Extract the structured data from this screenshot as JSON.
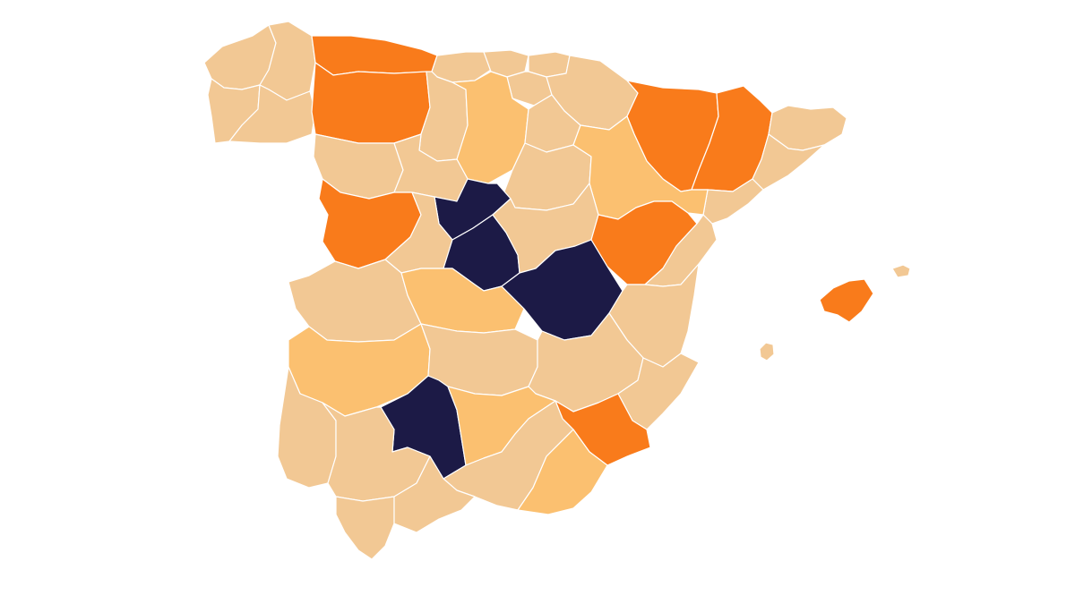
{
  "colors": {
    "background": "#ffffff",
    "level_0": "#f2c894",
    "level_1": "#fbc070",
    "level_2": "#f97b1b",
    "level_3": "#1c1a46",
    "border": "#ffffff"
  },
  "map": {
    "region": "Spain",
    "unit": "province",
    "legend": "none",
    "provinces": [
      {
        "id": "A Coruña",
        "level": 0
      },
      {
        "id": "Lugo",
        "level": 0
      },
      {
        "id": "Pontevedra",
        "level": 0
      },
      {
        "id": "Ourense",
        "level": 0
      },
      {
        "id": "Asturias",
        "level": 2
      },
      {
        "id": "Cantabria",
        "level": 0
      },
      {
        "id": "Bizkaia",
        "level": 0
      },
      {
        "id": "Gipuzkoa",
        "level": 0
      },
      {
        "id": "Álava",
        "level": 0
      },
      {
        "id": "Navarra",
        "level": 0
      },
      {
        "id": "León",
        "level": 2
      },
      {
        "id": "Palencia",
        "level": 0
      },
      {
        "id": "Burgos",
        "level": 1
      },
      {
        "id": "La Rioja",
        "level": 0
      },
      {
        "id": "Zamora",
        "level": 0
      },
      {
        "id": "Valladolid",
        "level": 0
      },
      {
        "id": "Soria",
        "level": 0
      },
      {
        "id": "Huesca",
        "level": 2
      },
      {
        "id": "Lleida",
        "level": 2
      },
      {
        "id": "Girona",
        "level": 0
      },
      {
        "id": "Barcelona",
        "level": 0
      },
      {
        "id": "Tarragona",
        "level": 0
      },
      {
        "id": "Zaragoza",
        "level": 1
      },
      {
        "id": "Salamanca",
        "level": 2
      },
      {
        "id": "Segovia",
        "level": 3
      },
      {
        "id": "Ávila",
        "level": 0
      },
      {
        "id": "Madrid",
        "level": 3
      },
      {
        "id": "Guadalajara",
        "level": 0
      },
      {
        "id": "Teruel",
        "level": 2
      },
      {
        "id": "Castellón",
        "level": 0
      },
      {
        "id": "Cáceres",
        "level": 0
      },
      {
        "id": "Toledo",
        "level": 1
      },
      {
        "id": "Cuenca",
        "level": 3
      },
      {
        "id": "Valencia",
        "level": 0
      },
      {
        "id": "Badajoz",
        "level": 1
      },
      {
        "id": "Ciudad Real",
        "level": 0
      },
      {
        "id": "Albacete",
        "level": 0
      },
      {
        "id": "Alicante",
        "level": 0
      },
      {
        "id": "Córdoba",
        "level": 3
      },
      {
        "id": "Jaén",
        "level": 1
      },
      {
        "id": "Murcia",
        "level": 2
      },
      {
        "id": "Huelva",
        "level": 0
      },
      {
        "id": "Sevilla",
        "level": 0
      },
      {
        "id": "Granada",
        "level": 0
      },
      {
        "id": "Almería",
        "level": 1
      },
      {
        "id": "Cádiz",
        "level": 0
      },
      {
        "id": "Málaga",
        "level": 0
      },
      {
        "id": "Mallorca",
        "level": 2
      },
      {
        "id": "Menorca",
        "level": 0
      },
      {
        "id": "Ibiza",
        "level": 0
      }
    ]
  }
}
